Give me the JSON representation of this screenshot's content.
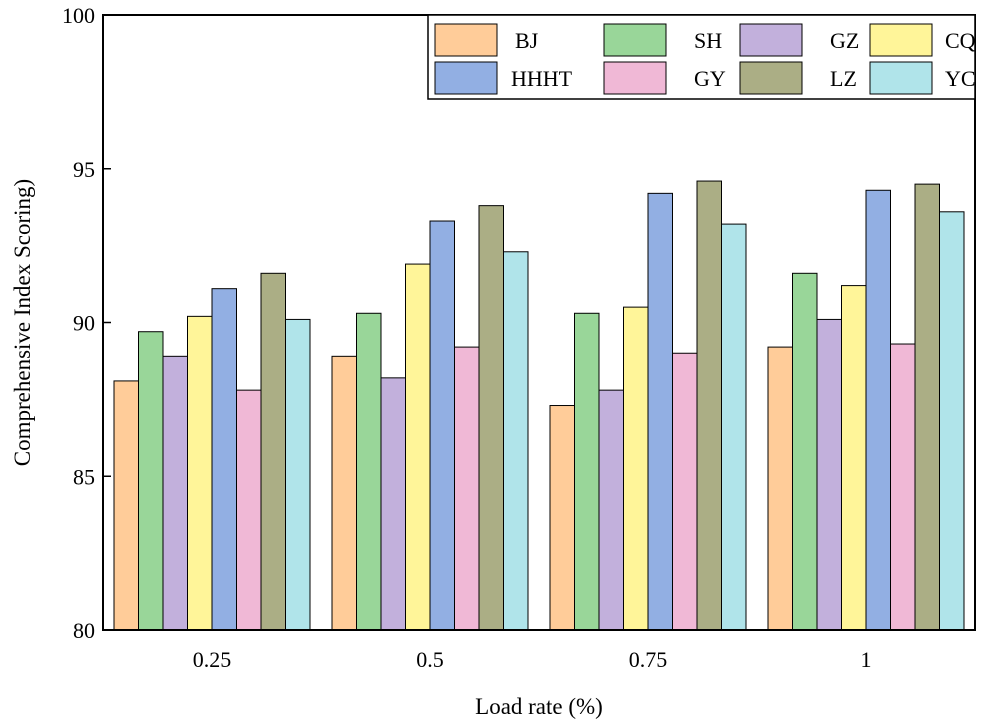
{
  "chart_data": {
    "type": "bar",
    "title": "",
    "xlabel": "Load rate (%)",
    "ylabel": "Comprehensive Index Scoring)",
    "categories": [
      "0.25",
      "0.5",
      "0.75",
      "1"
    ],
    "ylim": [
      80,
      100
    ],
    "yticks": [
      80,
      85,
      90,
      95,
      100
    ],
    "grid": false,
    "legend_position": "top-right",
    "series": [
      {
        "name": "BJ",
        "color": "#FFCC99",
        "values": [
          88.1,
          88.9,
          87.3,
          89.2
        ]
      },
      {
        "name": "SH",
        "color": "#99D699",
        "values": [
          89.7,
          90.3,
          90.3,
          91.6
        ]
      },
      {
        "name": "GZ",
        "color": "#C2B0DC",
        "values": [
          88.9,
          88.2,
          87.8,
          90.1
        ]
      },
      {
        "name": "CQ",
        "color": "#FFF599",
        "values": [
          90.2,
          91.9,
          90.5,
          91.2
        ]
      },
      {
        "name": "HHHT",
        "color": "#92AFE3",
        "values": [
          91.1,
          93.3,
          94.2,
          94.3
        ]
      },
      {
        "name": "GY",
        "color": "#F0B8D6",
        "values": [
          87.8,
          89.2,
          89.0,
          89.3
        ]
      },
      {
        "name": "LZ",
        "color": "#ABAE85",
        "values": [
          91.6,
          93.8,
          94.6,
          94.5
        ]
      },
      {
        "name": "YC",
        "color": "#B0E4EA",
        "values": [
          90.1,
          92.3,
          93.2,
          93.6
        ]
      }
    ]
  }
}
